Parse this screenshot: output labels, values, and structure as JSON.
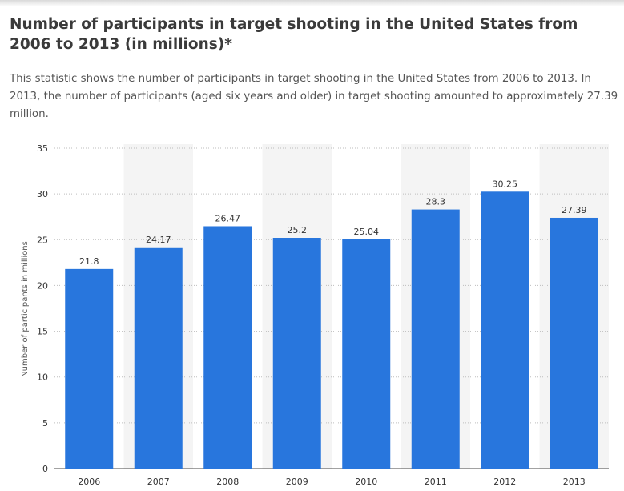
{
  "title": "Number of participants in target shooting in the United States from 2006 to 2013 (in millions)*",
  "description": "This statistic shows the number of participants in target shooting in the United States from 2006 to 2013. In 2013, the number of participants (aged six years and older) in target shooting amounted to approximately 27.39 million.",
  "chart_data": {
    "type": "bar",
    "categories": [
      "2006",
      "2007",
      "2008",
      "2009",
      "2010",
      "2011",
      "2012",
      "2013"
    ],
    "values": [
      21.8,
      24.17,
      26.47,
      25.2,
      25.04,
      28.3,
      30.25,
      27.39
    ],
    "data_labels": [
      "21.8",
      "24.17",
      "26.47",
      "25.2",
      "25.04",
      "28.3",
      "30.25",
      "27.39"
    ],
    "ylabel": "Number of participants in millions",
    "ylim": [
      0,
      35
    ],
    "yticks": [
      "0",
      "5",
      "10",
      "15",
      "20",
      "25",
      "30",
      "35"
    ],
    "grid": true,
    "bar_color": "#2876dd",
    "band_color": "#f4f4f4"
  }
}
